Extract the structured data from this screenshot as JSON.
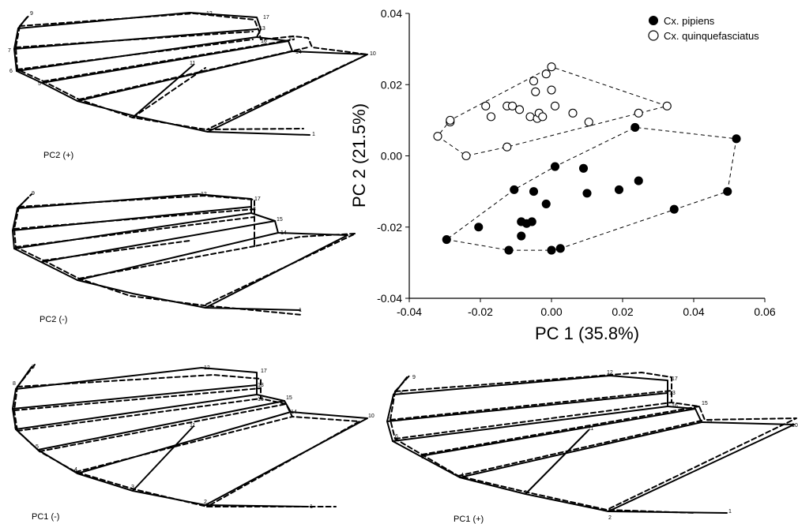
{
  "colors": {
    "ink": "#000000",
    "paper": "#ffffff"
  },
  "wing_panels": [
    {
      "id": "pc2-plus",
      "label": "PC2 (+)"
    },
    {
      "id": "pc2-minus",
      "label": "PC2 (-)"
    },
    {
      "id": "pc1-minus",
      "label": "PC1 (-)"
    },
    {
      "id": "pc1-plus",
      "label": "PC1 (+)"
    }
  ],
  "landmark_labels": [
    "1",
    "2",
    "3",
    "4",
    "5",
    "6",
    "7",
    "8",
    "9",
    "10",
    "11",
    "12",
    "13",
    "14",
    "15",
    "16",
    "17"
  ],
  "chart_data": {
    "type": "scatter",
    "xlabel": "PC 1 (35.8%)",
    "ylabel": "PC 2 (21.5%)",
    "xlim": [
      -0.04,
      0.06
    ],
    "ylim": [
      -0.04,
      0.04
    ],
    "xticks": [
      "-0.04",
      "-0.02",
      "0.00",
      "0.02",
      "0.04",
      "0.06"
    ],
    "yticks": [
      "-0.04",
      "-0.02",
      "0.00",
      "0.02",
      "0.04"
    ],
    "grid": false,
    "legend_position": "top-right",
    "series": [
      {
        "name": "Cx. pipiens",
        "marker": "filled-circle",
        "hull": "dashed",
        "points": [
          [
            -0.0295,
            -0.0235
          ],
          [
            -0.0205,
            -0.02
          ],
          [
            -0.012,
            -0.0265
          ],
          [
            -0.0105,
            -0.0095
          ],
          [
            -0.0085,
            -0.0185
          ],
          [
            -0.0085,
            -0.0225
          ],
          [
            -0.007,
            -0.019
          ],
          [
            -0.0055,
            -0.0185
          ],
          [
            -0.005,
            -0.01
          ],
          [
            -0.0015,
            -0.0135
          ],
          [
            0.0,
            -0.0265
          ],
          [
            0.001,
            -0.003
          ],
          [
            0.0025,
            -0.026
          ],
          [
            0.009,
            -0.0035
          ],
          [
            0.01,
            -0.0105
          ],
          [
            0.019,
            -0.0095
          ],
          [
            0.0235,
            0.008
          ],
          [
            0.0245,
            -0.007
          ],
          [
            0.0345,
            -0.015
          ],
          [
            0.0495,
            -0.01
          ],
          [
            0.052,
            0.0048
          ]
        ]
      },
      {
        "name": "Cx. quinquefasciatus",
        "marker": "open-circle",
        "hull": "dashed",
        "points": [
          [
            -0.032,
            0.0055
          ],
          [
            -0.0285,
            0.0095
          ],
          [
            -0.0285,
            0.01
          ],
          [
            -0.024,
            0.0
          ],
          [
            -0.0185,
            0.014
          ],
          [
            -0.017,
            0.011
          ],
          [
            -0.0125,
            0.0025
          ],
          [
            -0.0125,
            0.014
          ],
          [
            -0.011,
            0.014
          ],
          [
            -0.009,
            0.013
          ],
          [
            -0.006,
            0.011
          ],
          [
            -0.005,
            0.021
          ],
          [
            -0.0045,
            0.018
          ],
          [
            -0.004,
            0.0105
          ],
          [
            -0.0035,
            0.012
          ],
          [
            -0.0025,
            0.011
          ],
          [
            -0.0015,
            0.023
          ],
          [
            0.0,
            0.025
          ],
          [
            0.0,
            0.0185
          ],
          [
            0.001,
            0.014
          ],
          [
            0.006,
            0.012
          ],
          [
            0.0105,
            0.0095
          ],
          [
            0.0245,
            0.012
          ],
          [
            0.0325,
            0.014
          ]
        ]
      }
    ]
  }
}
